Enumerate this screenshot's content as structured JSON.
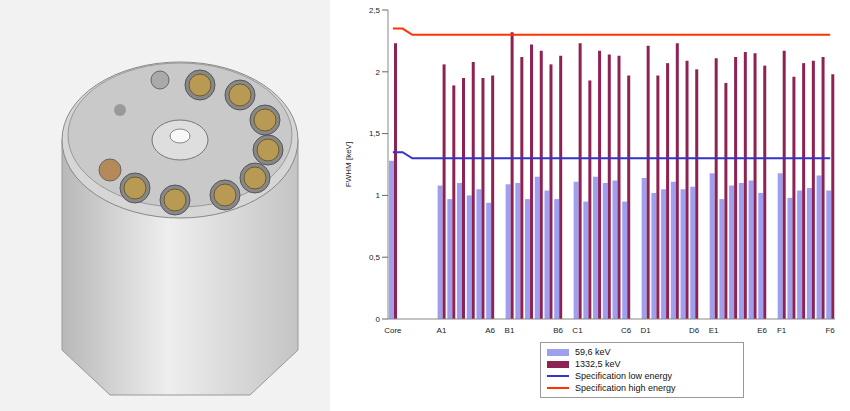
{
  "chart_data": {
    "type": "bar",
    "y_label": "FWHM [keV]",
    "categories": [
      "Core",
      null,
      null,
      null,
      null,
      "A1",
      null,
      null,
      null,
      null,
      "A6",
      null,
      "B1",
      null,
      null,
      null,
      null,
      "B6",
      null,
      "C1",
      null,
      null,
      null,
      null,
      "C6",
      null,
      "D1",
      null,
      null,
      null,
      null,
      "D6",
      null,
      "E1",
      null,
      null,
      null,
      null,
      "E6",
      null,
      "F1",
      null,
      null,
      null,
      null,
      "F6"
    ],
    "series": [
      {
        "name": "59,6 keV",
        "type": "bar",
        "color": "#9f9ff0",
        "values": [
          1.28,
          null,
          null,
          null,
          null,
          1.08,
          0.97,
          1.1,
          1.0,
          1.05,
          0.94,
          null,
          1.09,
          1.1,
          0.97,
          1.15,
          1.04,
          0.97,
          null,
          1.11,
          0.95,
          1.15,
          1.1,
          1.12,
          0.95,
          null,
          1.14,
          1.02,
          1.05,
          1.11,
          1.05,
          1.07,
          null,
          1.18,
          0.97,
          1.08,
          1.1,
          1.12,
          1.02,
          null,
          1.18,
          0.98,
          1.04,
          1.06,
          1.16,
          1.04
        ]
      },
      {
        "name": "1332,5 keV",
        "type": "bar",
        "color": "#8e2252",
        "values": [
          2.23,
          null,
          null,
          null,
          null,
          2.06,
          1.89,
          1.95,
          2.08,
          1.95,
          1.97,
          null,
          2.32,
          2.12,
          2.22,
          2.17,
          2.06,
          2.13,
          null,
          2.23,
          1.93,
          2.17,
          2.14,
          2.13,
          1.97,
          null,
          2.21,
          1.97,
          2.07,
          2.23,
          2.09,
          2.02,
          null,
          2.11,
          1.91,
          2.12,
          2.16,
          2.15,
          2.05,
          null,
          2.17,
          1.96,
          2.07,
          2.09,
          2.12,
          1.98
        ]
      },
      {
        "name": "Specification low energy",
        "type": "line",
        "color": "#3333cc",
        "values": [
          1.35,
          1.35,
          1.3,
          1.3,
          1.3,
          1.3,
          1.3,
          1.3,
          1.3,
          1.3,
          1.3,
          1.3,
          1.3,
          1.3,
          1.3,
          1.3,
          1.3,
          1.3,
          1.3,
          1.3,
          1.3,
          1.3,
          1.3,
          1.3,
          1.3,
          1.3,
          1.3,
          1.3,
          1.3,
          1.3,
          1.3,
          1.3,
          1.3,
          1.3,
          1.3,
          1.3,
          1.3,
          1.3,
          1.3,
          1.3,
          1.3,
          1.3,
          1.3,
          1.3,
          1.3,
          1.3
        ]
      },
      {
        "name": "Specification high energy",
        "type": "line",
        "color": "#ff3300",
        "values": [
          2.35,
          2.35,
          2.3,
          2.3,
          2.3,
          2.3,
          2.3,
          2.3,
          2.3,
          2.3,
          2.3,
          2.3,
          2.3,
          2.3,
          2.3,
          2.3,
          2.3,
          2.3,
          2.3,
          2.3,
          2.3,
          2.3,
          2.3,
          2.3,
          2.3,
          2.3,
          2.3,
          2.3,
          2.3,
          2.3,
          2.3,
          2.3,
          2.3,
          2.3,
          2.3,
          2.3,
          2.3,
          2.3,
          2.3,
          2.3,
          2.3,
          2.3,
          2.3,
          2.3,
          2.3,
          2.3
        ]
      }
    ],
    "ylim": [
      0,
      2.5
    ],
    "yticks": [
      0,
      {
        "value": 0.5,
        "label": "0,5"
      },
      1,
      {
        "value": 1.5,
        "label": "1,5"
      },
      2,
      {
        "value": 2.5,
        "label": "2,5"
      }
    ],
    "grid": false,
    "legend": "bottom"
  }
}
